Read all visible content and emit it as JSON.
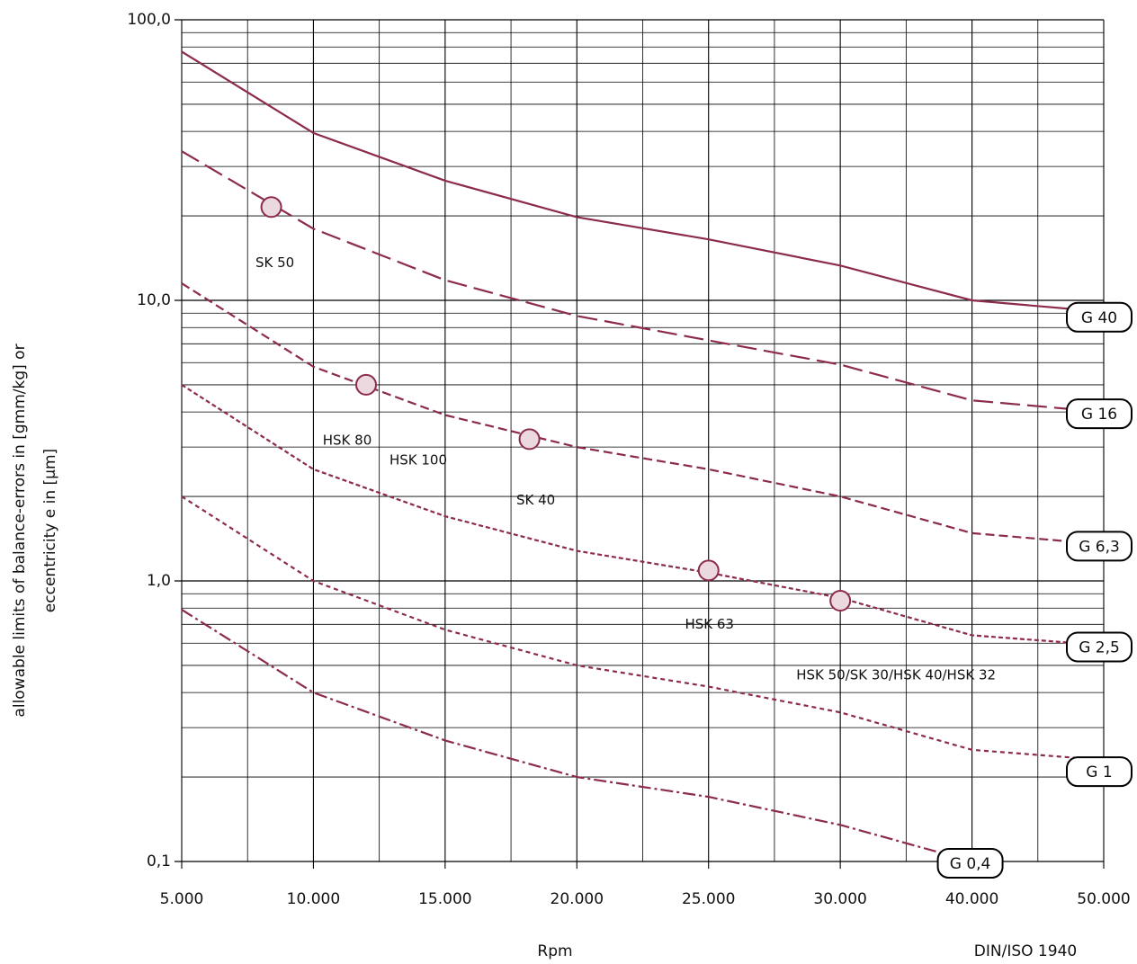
{
  "chart_data": {
    "type": "line",
    "y_label": [
      "allowable limits of balance-errors in [gmm/kg] or",
      "eccentricity e in [µm]"
    ],
    "x_label": "Rpm",
    "note": "DIN/ISO 1940",
    "log_y": true,
    "grid": true,
    "color": "#8c2b4e",
    "x": [
      5000,
      10000,
      15000,
      20000,
      25000,
      30000,
      40000,
      50000
    ],
    "xlim": [
      5000,
      50000
    ],
    "xticks": [
      {
        "value": 5000,
        "label": "5.000"
      },
      {
        "value": 10000,
        "label": "10.000"
      },
      {
        "value": 15000,
        "label": "15.000"
      },
      {
        "value": 20000,
        "label": "20.000"
      },
      {
        "value": 25000,
        "label": "25.000"
      },
      {
        "value": 30000,
        "label": "30.000"
      },
      {
        "value": 40000,
        "label": "40.000"
      },
      {
        "value": 50000,
        "label": "50.000"
      }
    ],
    "xminor": [
      7500,
      12500,
      17500,
      22500,
      27500,
      35000,
      45000
    ],
    "ylim": [
      0.1,
      100
    ],
    "yticks": [
      {
        "value": 0.1,
        "label": "0,1"
      },
      {
        "value": 1,
        "label": "1,0"
      },
      {
        "value": 10,
        "label": "10,0"
      },
      {
        "value": 100,
        "label": "100,0"
      }
    ],
    "yminor": [
      0.2,
      0.3,
      0.4,
      0.5,
      0.6,
      0.7,
      0.8,
      0.9,
      2,
      3,
      4,
      5,
      6,
      7,
      8,
      9,
      20,
      30,
      40,
      50,
      60,
      70,
      80,
      90
    ],
    "series": [
      {
        "name": "G 40",
        "dash": "none",
        "values": [
          77,
          39.5,
          26.7,
          19.8,
          16.5,
          13.3,
          10,
          9.1
        ]
      },
      {
        "name": "G 16",
        "dash": "22,8",
        "values": [
          34,
          18,
          11.8,
          8.8,
          7.2,
          5.9,
          4.4,
          4.0
        ]
      },
      {
        "name": "G 6,3",
        "dash": "10,5",
        "values": [
          11.5,
          5.8,
          3.9,
          3.0,
          2.5,
          2.0,
          1.48,
          1.35
        ]
      },
      {
        "name": "G 2,5",
        "dash": "5,3",
        "values": [
          5.0,
          2.5,
          1.7,
          1.28,
          1.07,
          0.87,
          0.64,
          0.59
        ]
      },
      {
        "name": "G 1",
        "dash": "5,4",
        "values": [
          2.0,
          1.0,
          0.67,
          0.5,
          0.42,
          0.34,
          0.25,
          0.23
        ]
      },
      {
        "name": "G 0,4",
        "dash": "14,4,3,4",
        "values": [
          0.79,
          0.4,
          0.27,
          0.2,
          0.17,
          0.135,
          0.1,
          null
        ]
      }
    ],
    "points": [
      {
        "labels": [
          "SK 50"
        ],
        "x": 8400,
        "y": 21.5
      },
      {
        "labels": [
          "HSK 80",
          "HSK 100"
        ],
        "x": 12000,
        "y": 5.0
      },
      {
        "labels": [
          "SK 40"
        ],
        "x": 18200,
        "y": 3.2
      },
      {
        "labels": [
          "HSK 63"
        ],
        "x": 25000,
        "y": 1.09
      },
      {
        "labels": [
          "HSK 50/SK 30/HSK 40/HSK 32"
        ],
        "x": 30000,
        "y": 0.85
      }
    ]
  }
}
